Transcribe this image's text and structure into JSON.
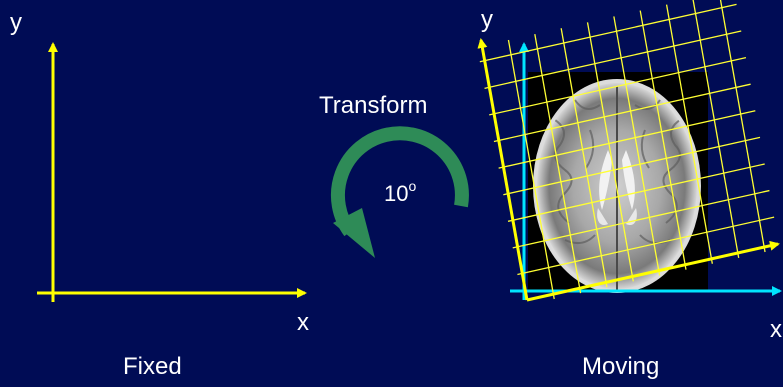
{
  "fixed": {
    "y_label": "y",
    "x_label": "x",
    "caption": "Fixed"
  },
  "transform": {
    "label": "Transform",
    "angle_value": "10",
    "angle_unit": "o"
  },
  "moving": {
    "y_label": "y",
    "x_label": "x",
    "caption": "Moving"
  },
  "colors": {
    "background": "#000c55",
    "axes": "#ffff00",
    "moving_axes": "#00e5ff",
    "grid": "#ffff33",
    "rotation_arrow": "#2e8b57",
    "text": "#ffffff"
  },
  "icons": {
    "rotation": "curved-arrow-icon",
    "brain": "brain-mri-image"
  }
}
